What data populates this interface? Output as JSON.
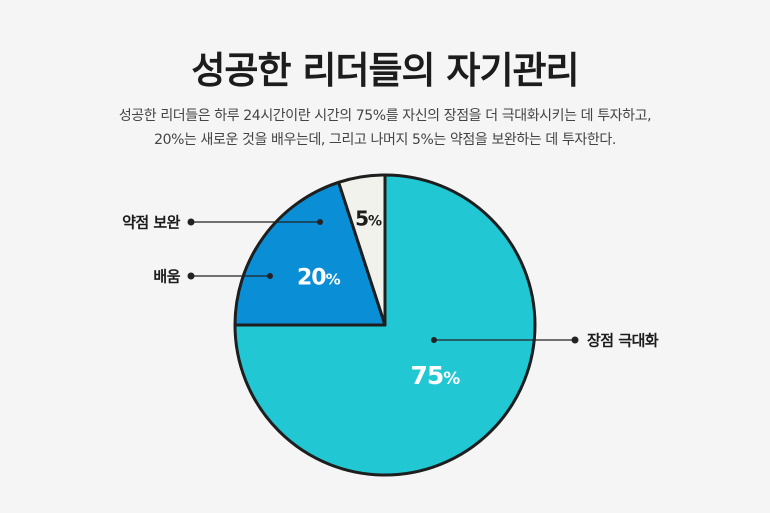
{
  "title": "성공한 리더들의 자기관리",
  "subtitle": {
    "line1": "성공한 리더들은 하루 24시간이란 시간의 75%를 자신의 장점을 더 극대화시키는 데 투자하고,",
    "line2": "20%는 새로운 것을 배우는데, 그리고 나머지 5%는 약점을 보완하는 데 투자한다."
  },
  "colors": {
    "background": "#f5f5f5",
    "outline": "#1e1e1e"
  },
  "chart_data": {
    "type": "pie",
    "title": "성공한 리더들의 자기관리",
    "slices": [
      {
        "label": "장점 극대화",
        "value": 75,
        "display": "75%",
        "color": "#22c7d4"
      },
      {
        "label": "배움",
        "value": 20,
        "display": "20%",
        "color": "#0a8fd6"
      },
      {
        "label": "약점 보완",
        "value": 5,
        "display": "5%",
        "color": "#f2f2ec"
      }
    ]
  }
}
